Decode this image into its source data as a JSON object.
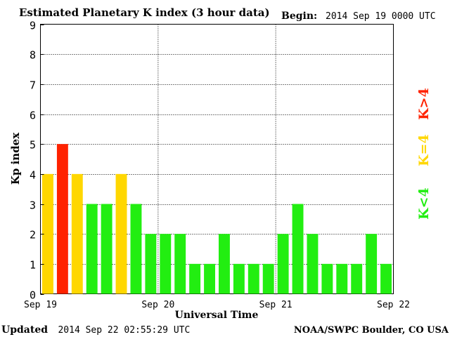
{
  "chart_data": {
    "type": "bar",
    "title": "Estimated Planetary K index (3 hour data)",
    "begin_label": "Begin:",
    "begin_value": "2014 Sep 19 0000 UTC",
    "xlabel": "Universal Time",
    "ylabel": "Kp index",
    "ylim": [
      0,
      9
    ],
    "yticks": [
      "0",
      "1",
      "2",
      "3",
      "4",
      "5",
      "6",
      "7",
      "8",
      "9"
    ],
    "xticks": [
      "Sep 19",
      "Sep 20",
      "Sep 21",
      "Sep 22"
    ],
    "grid": true,
    "values": [
      4,
      5,
      4,
      3,
      3,
      4,
      3,
      2,
      2,
      2,
      1,
      1,
      2,
      1,
      1,
      1,
      2,
      3,
      2,
      1,
      1,
      1,
      2,
      1
    ],
    "legend": [
      {
        "label": "K<4",
        "color": "#22ee11"
      },
      {
        "label": "K=4",
        "color": "#ffd700"
      },
      {
        "label": "K>4",
        "color": "#ff2200"
      }
    ],
    "colors": {
      "low": "#22ee11",
      "mid": "#ffd700",
      "high": "#ff2200"
    }
  },
  "footer": {
    "updated_label": "Updated",
    "updated_value": "2014 Sep 22 02:55:29 UTC",
    "source": "NOAA/SWPC Boulder, CO USA"
  }
}
